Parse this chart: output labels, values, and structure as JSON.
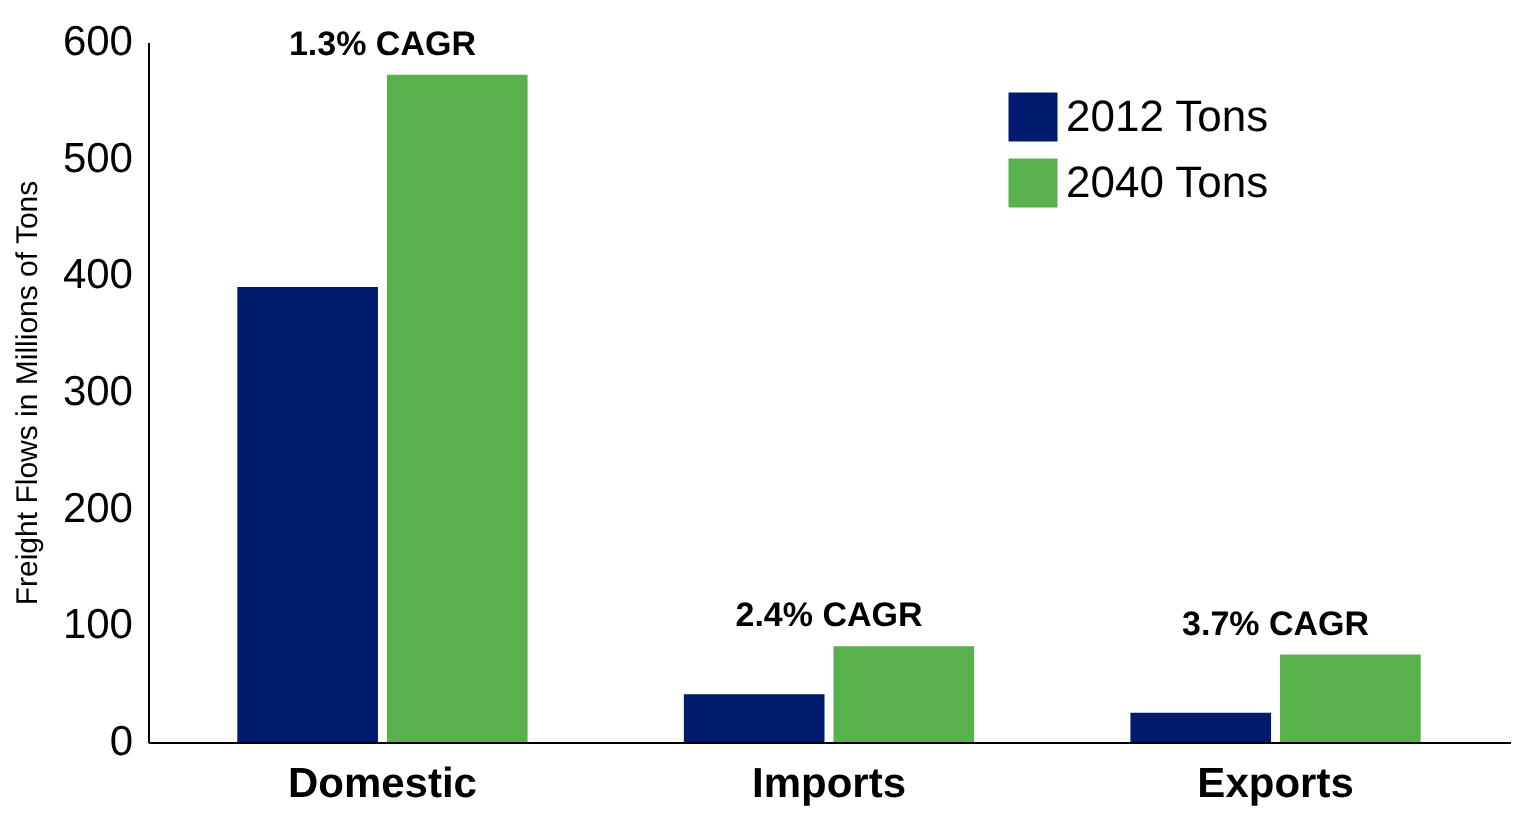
{
  "chart_data": {
    "type": "bar",
    "ylabel": "Freight Flows in Millions of Tons",
    "categories": [
      "Domestic",
      "Imports",
      "Exports"
    ],
    "series": [
      {
        "name": "2012 Tons",
        "color": "#001a6e",
        "values": [
          390,
          41,
          25
        ]
      },
      {
        "name": "2040 Tons",
        "color": "#58b14c",
        "values": [
          572,
          82,
          75
        ]
      }
    ],
    "ylim": [
      0,
      600
    ],
    "yticks": [
      0,
      100,
      200,
      300,
      400,
      500,
      600
    ],
    "grid": false,
    "legend": "top right",
    "annotations": [
      {
        "text": "1.3% CAGR",
        "x": "Domestic",
        "y": 572
      },
      {
        "text": "2.4% CAGR",
        "x": "Imports",
        "y": 82
      },
      {
        "text": "3.7% CAGR",
        "x": "Exports",
        "y": 75
      }
    ]
  }
}
